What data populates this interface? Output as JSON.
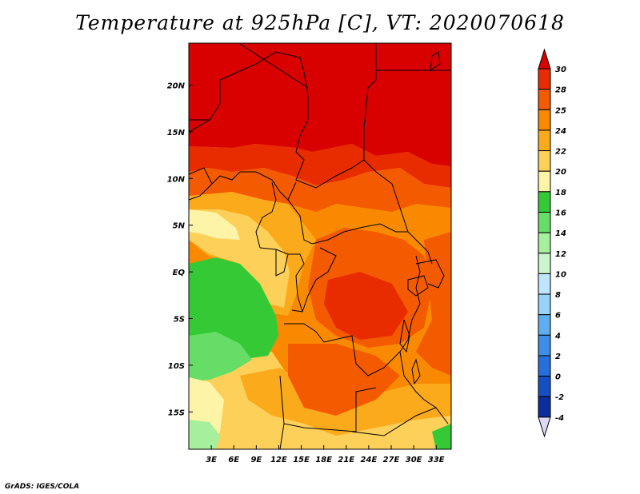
{
  "title": "Temperature at 925hPa [C], VT: 2020070618",
  "credit": "GrADS: IGES/COLA",
  "map": {
    "lon_labels": [
      "3E",
      "6E",
      "9E",
      "12E",
      "15E",
      "18E",
      "21E",
      "24E",
      "27E",
      "30E",
      "33E"
    ],
    "lat_labels": [
      "20N",
      "15N",
      "10N",
      "5N",
      "EQ",
      "5S",
      "10S",
      "15S"
    ],
    "lon_range": [
      0,
      35
    ],
    "lat_range": [
      -19,
      24.5
    ]
  },
  "colorbar": {
    "levels": [
      "30",
      "28",
      "25",
      "24",
      "22",
      "20",
      "18",
      "16",
      "14",
      "12",
      "10",
      "8",
      "6",
      "4",
      "2",
      "0",
      "-2",
      "-4"
    ],
    "colors": [
      "#d90000",
      "#e82c00",
      "#f45a00",
      "#f98a00",
      "#fbaa1c",
      "#fdd05a",
      "#fef4a8",
      "#36c936",
      "#66dd66",
      "#a6ef9c",
      "#cdf5cd",
      "#bfe6ff",
      "#96d2fa",
      "#5eadf0",
      "#3c8ee6",
      "#2670dc",
      "#1450c3",
      "#0a2f9c",
      "#07127a",
      "#ddd8f5"
    ]
  }
}
